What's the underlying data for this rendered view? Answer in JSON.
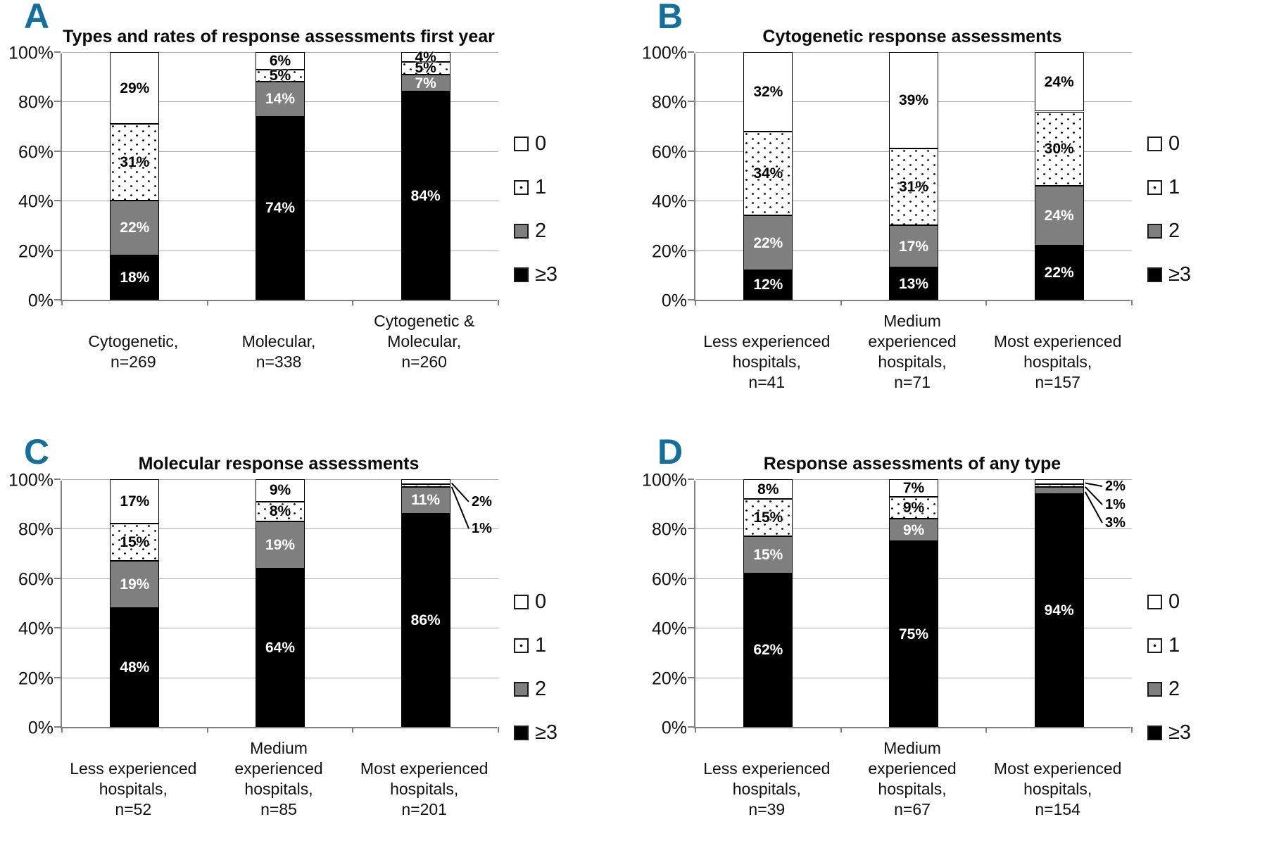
{
  "colors": {
    "panel_letter": "#156f9c",
    "segment_black": "#000000",
    "segment_gray": "#7f7f7f",
    "segment_white": "#ffffff",
    "grid": "#a8a8a8",
    "axis": "#808080"
  },
  "yticks": [
    "0%",
    "20%",
    "40%",
    "60%",
    "80%",
    "100%"
  ],
  "legend": [
    {
      "label": "0",
      "swatch": "white"
    },
    {
      "label": "1",
      "swatch": "dot1"
    },
    {
      "label": "2",
      "swatch": "gray"
    },
    {
      "label": "≥3",
      "swatch": "black"
    }
  ],
  "chart_data": [
    {
      "panel": "A",
      "type": "bar",
      "stacked": true,
      "title": "Types and rates of response assessments first year",
      "ylim": [
        0,
        100
      ],
      "grid": true,
      "legend_position": "right",
      "categories": [
        [
          "Cytogenetic,",
          "n=269"
        ],
        [
          "Molecular,",
          "n=338"
        ],
        [
          "Cytogenetic &",
          "Molecular,",
          "n=260"
        ]
      ],
      "series": [
        {
          "name": "≥3",
          "swatch": "black",
          "values": [
            18,
            74,
            84
          ],
          "labels": [
            "18%",
            "74%",
            "84%"
          ]
        },
        {
          "name": "2",
          "swatch": "gray",
          "values": [
            22,
            14,
            7
          ],
          "labels": [
            "22%",
            "14%",
            "7%"
          ]
        },
        {
          "name": "1",
          "swatch": "dotted",
          "values": [
            31,
            5,
            5
          ],
          "labels": [
            "31%",
            "5%",
            "5%"
          ]
        },
        {
          "name": "0",
          "swatch": "white",
          "values": [
            29,
            6,
            4
          ],
          "labels": [
            "29%",
            "6%",
            "4%"
          ]
        }
      ],
      "callouts": []
    },
    {
      "panel": "B",
      "type": "bar",
      "stacked": true,
      "title": "Cytogenetic response assessments",
      "ylim": [
        0,
        100
      ],
      "grid": true,
      "legend_position": "right",
      "categories": [
        [
          "Less experienced",
          "hospitals,",
          "n=41"
        ],
        [
          "Medium experienced",
          "hospitals,",
          "n=71"
        ],
        [
          "Most experienced",
          "hospitals,",
          "n=157"
        ]
      ],
      "series": [
        {
          "name": "≥3",
          "swatch": "black",
          "values": [
            12,
            13,
            22
          ],
          "labels": [
            "12%",
            "13%",
            "22%"
          ]
        },
        {
          "name": "2",
          "swatch": "gray",
          "values": [
            22,
            17,
            24
          ],
          "labels": [
            "22%",
            "17%",
            "24%"
          ]
        },
        {
          "name": "1",
          "swatch": "dotted",
          "values": [
            34,
            31,
            30
          ],
          "labels": [
            "34%",
            "31%",
            "30%"
          ]
        },
        {
          "name": "0",
          "swatch": "white",
          "values": [
            32,
            39,
            24
          ],
          "labels": [
            "32%",
            "39%",
            "24%"
          ]
        }
      ],
      "callouts": []
    },
    {
      "panel": "C",
      "type": "bar",
      "stacked": true,
      "title": "Molecular response assessments",
      "ylim": [
        0,
        100
      ],
      "grid": true,
      "legend_position": "right",
      "categories": [
        [
          "Less experienced",
          "hospitals,",
          "n=52"
        ],
        [
          "Medium experienced",
          "hospitals,",
          "n=85"
        ],
        [
          "Most experienced",
          "hospitals,",
          "n=201"
        ]
      ],
      "series": [
        {
          "name": "≥3",
          "swatch": "black",
          "values": [
            48,
            64,
            86
          ],
          "labels": [
            "48%",
            "64%",
            "86%"
          ]
        },
        {
          "name": "2",
          "swatch": "gray",
          "values": [
            19,
            19,
            11
          ],
          "labels": [
            "19%",
            "19%",
            "11%"
          ]
        },
        {
          "name": "1",
          "swatch": "dotted",
          "values": [
            15,
            8,
            1
          ],
          "labels": [
            "15%",
            "8%",
            null
          ]
        },
        {
          "name": "0",
          "swatch": "white",
          "values": [
            17,
            9,
            2
          ],
          "labels": [
            "17%",
            "9%",
            null
          ]
        }
      ],
      "callouts": [
        {
          "bar": 2,
          "series": "0",
          "text": "2%"
        },
        {
          "bar": 2,
          "series": "1",
          "text": "1%"
        }
      ]
    },
    {
      "panel": "D",
      "type": "bar",
      "stacked": true,
      "title": "Response assessments of any type",
      "ylim": [
        0,
        100
      ],
      "grid": true,
      "legend_position": "right",
      "categories": [
        [
          "Less experienced",
          "hospitals,",
          "n=39"
        ],
        [
          "Medium experienced",
          "hospitals,",
          "n=67"
        ],
        [
          "Most experienced",
          "hospitals,",
          "n=154"
        ]
      ],
      "series": [
        {
          "name": "≥3",
          "swatch": "black",
          "values": [
            62,
            75,
            94
          ],
          "labels": [
            "62%",
            "75%",
            "94%"
          ]
        },
        {
          "name": "2",
          "swatch": "gray",
          "values": [
            15,
            9,
            3
          ],
          "labels": [
            "15%",
            "9%",
            null
          ]
        },
        {
          "name": "1",
          "swatch": "dotted",
          "values": [
            15,
            9,
            1
          ],
          "labels": [
            "15%",
            "9%",
            null
          ]
        },
        {
          "name": "0",
          "swatch": "white",
          "values": [
            8,
            7,
            2
          ],
          "labels": [
            "8%",
            "7%",
            null
          ]
        }
      ],
      "callouts": [
        {
          "bar": 2,
          "series": "0",
          "text": "2%"
        },
        {
          "bar": 2,
          "series": "1",
          "text": "1%"
        },
        {
          "bar": 2,
          "series": "2",
          "text": "3%"
        }
      ]
    }
  ]
}
